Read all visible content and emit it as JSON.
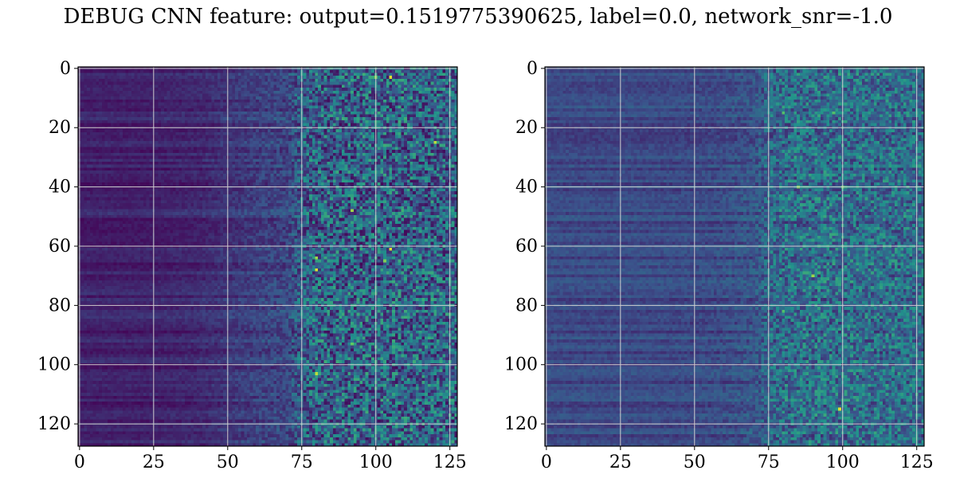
{
  "figure": {
    "title": "DEBUG CNN feature: output=0.1519775390625, label=0.0, network_snr=-1.0"
  },
  "colors": {
    "background": "#ffffff",
    "grid": "#d0d0d0",
    "colormap": [
      "#440154",
      "#3b528b",
      "#21918c",
      "#5ec962",
      "#fde725"
    ]
  },
  "chart_data": [
    {
      "type": "heatmap",
      "title": "",
      "xlabel": "",
      "ylabel": "",
      "xlim": [
        0,
        127
      ],
      "ylim": [
        127,
        0
      ],
      "grid": true,
      "colormap": "viridis",
      "shape": [
        128,
        128
      ],
      "xticks": [
        0,
        25,
        50,
        75,
        100,
        125
      ],
      "yticks": [
        0,
        20,
        40,
        60,
        80,
        100,
        120
      ],
      "column_profile": {
        "x": [
          0,
          20,
          40,
          50,
          60,
          70,
          75,
          80,
          90,
          100,
          110,
          127
        ],
        "mean_level": [
          0.1,
          0.1,
          0.12,
          0.16,
          0.2,
          0.22,
          0.3,
          0.32,
          0.32,
          0.33,
          0.33,
          0.32
        ],
        "noise_level": [
          0.03,
          0.03,
          0.04,
          0.05,
          0.07,
          0.09,
          0.22,
          0.26,
          0.28,
          0.28,
          0.28,
          0.27
        ]
      },
      "hotspots": [
        {
          "x": 105,
          "y": 3,
          "value": 0.95
        },
        {
          "x": 100,
          "y": 3,
          "value": 0.8
        },
        {
          "x": 120,
          "y": 25,
          "value": 0.9
        },
        {
          "x": 105,
          "y": 61,
          "value": 0.95
        },
        {
          "x": 80,
          "y": 64,
          "value": 0.85
        },
        {
          "x": 80,
          "y": 68,
          "value": 0.95
        },
        {
          "x": 92,
          "y": 48,
          "value": 0.85
        },
        {
          "x": 103,
          "y": 65,
          "value": 0.8
        },
        {
          "x": 92,
          "y": 93,
          "value": 0.75
        },
        {
          "x": 80,
          "y": 103,
          "value": 0.9
        }
      ]
    },
    {
      "type": "heatmap",
      "title": "",
      "xlabel": "",
      "ylabel": "",
      "xlim": [
        0,
        127
      ],
      "ylim": [
        127,
        0
      ],
      "grid": true,
      "colormap": "viridis",
      "shape": [
        128,
        128
      ],
      "xticks": [
        0,
        25,
        50,
        75,
        100,
        125
      ],
      "yticks": [
        0,
        20,
        40,
        60,
        80,
        100,
        120
      ],
      "column_profile": {
        "x": [
          0,
          20,
          40,
          50,
          60,
          70,
          75,
          80,
          90,
          100,
          110,
          127
        ],
        "mean_level": [
          0.22,
          0.22,
          0.22,
          0.22,
          0.23,
          0.26,
          0.32,
          0.35,
          0.36,
          0.36,
          0.36,
          0.35
        ],
        "noise_level": [
          0.04,
          0.04,
          0.04,
          0.05,
          0.06,
          0.08,
          0.18,
          0.2,
          0.21,
          0.21,
          0.2,
          0.2
        ]
      },
      "hotspots": [
        {
          "x": 85,
          "y": 40,
          "value": 0.8
        },
        {
          "x": 100,
          "y": 40,
          "value": 0.75
        },
        {
          "x": 90,
          "y": 70,
          "value": 0.85
        },
        {
          "x": 99,
          "y": 115,
          "value": 0.95
        },
        {
          "x": 80,
          "y": 15,
          "value": 0.7
        },
        {
          "x": 97,
          "y": 15,
          "value": 0.7
        },
        {
          "x": 80,
          "y": 82,
          "value": 0.7
        }
      ]
    }
  ]
}
